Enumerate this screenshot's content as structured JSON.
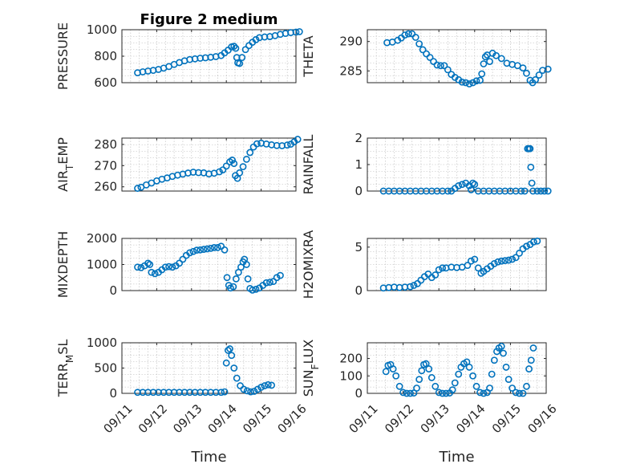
{
  "figure_title": "Figure 2 medium",
  "x_axis_label": "Time",
  "marker_color": "#0072BD",
  "x_tick_labels": [
    "09/11",
    "09/12",
    "09/13",
    "09/14",
    "09/15",
    "09/16"
  ],
  "chart_data": [
    {
      "type": "scatter",
      "ylabel": "PRESSURE",
      "ylim": [
        600,
        1000
      ],
      "yticks": [
        600,
        800,
        1000
      ],
      "xlim": [
        0,
        5
      ],
      "grid": true,
      "points": [
        [
          0.45,
          675
        ],
        [
          0.6,
          682
        ],
        [
          0.75,
          688
        ],
        [
          0.9,
          693
        ],
        [
          1.05,
          700
        ],
        [
          1.2,
          710
        ],
        [
          1.35,
          722
        ],
        [
          1.5,
          738
        ],
        [
          1.65,
          752
        ],
        [
          1.8,
          765
        ],
        [
          1.95,
          775
        ],
        [
          2.1,
          780
        ],
        [
          2.25,
          785
        ],
        [
          2.4,
          788
        ],
        [
          2.55,
          792
        ],
        [
          2.7,
          797
        ],
        [
          2.85,
          805
        ],
        [
          2.95,
          825
        ],
        [
          3.05,
          845
        ],
        [
          3.15,
          870
        ],
        [
          3.22,
          875
        ],
        [
          3.27,
          860
        ],
        [
          3.3,
          790
        ],
        [
          3.33,
          750
        ],
        [
          3.38,
          745
        ],
        [
          3.45,
          790
        ],
        [
          3.55,
          850
        ],
        [
          3.65,
          880
        ],
        [
          3.75,
          905
        ],
        [
          3.85,
          925
        ],
        [
          3.95,
          940
        ],
        [
          4.1,
          945
        ],
        [
          4.25,
          948
        ],
        [
          4.4,
          955
        ],
        [
          4.55,
          965
        ],
        [
          4.7,
          972
        ],
        [
          4.85,
          978
        ],
        [
          5.0,
          982
        ],
        [
          5.1,
          985
        ]
      ]
    },
    {
      "type": "scatter",
      "ylabel": "THETA",
      "ylim": [
        283,
        292
      ],
      "yticks": [
        285,
        290
      ],
      "xlim": [
        0,
        5
      ],
      "grid": true,
      "points": [
        [
          0.55,
          289.8
        ],
        [
          0.7,
          289.9
        ],
        [
          0.85,
          290.2
        ],
        [
          0.95,
          290.6
        ],
        [
          1.05,
          291.1
        ],
        [
          1.15,
          291.3
        ],
        [
          1.25,
          291.3
        ],
        [
          1.35,
          290.7
        ],
        [
          1.45,
          289.6
        ],
        [
          1.55,
          288.6
        ],
        [
          1.65,
          287.9
        ],
        [
          1.75,
          287.3
        ],
        [
          1.85,
          286.6
        ],
        [
          1.95,
          286.0
        ],
        [
          2.05,
          285.9
        ],
        [
          2.15,
          285.9
        ],
        [
          2.25,
          285.2
        ],
        [
          2.35,
          284.4
        ],
        [
          2.45,
          283.9
        ],
        [
          2.55,
          283.5
        ],
        [
          2.65,
          283.1
        ],
        [
          2.75,
          283.0
        ],
        [
          2.85,
          282.8
        ],
        [
          2.95,
          283.0
        ],
        [
          3.05,
          283.3
        ],
        [
          3.15,
          283.4
        ],
        [
          3.2,
          284.5
        ],
        [
          3.25,
          286.2
        ],
        [
          3.3,
          287.4
        ],
        [
          3.35,
          287.7
        ],
        [
          3.42,
          286.6
        ],
        [
          3.5,
          288.0
        ],
        [
          3.6,
          287.6
        ],
        [
          3.75,
          287.1
        ],
        [
          3.9,
          286.3
        ],
        [
          4.05,
          286.1
        ],
        [
          4.2,
          285.9
        ],
        [
          4.35,
          285.5
        ],
        [
          4.45,
          284.6
        ],
        [
          4.55,
          283.4
        ],
        [
          4.62,
          283.0
        ],
        [
          4.7,
          283.5
        ],
        [
          4.8,
          284.3
        ],
        [
          4.9,
          285.1
        ],
        [
          5.05,
          285.3
        ]
      ]
    },
    {
      "type": "scatter",
      "ylabel": "AIR_TEMP",
      "ylim": [
        258,
        283
      ],
      "yticks": [
        260,
        270,
        280
      ],
      "xlim": [
        0,
        5
      ],
      "grid": true,
      "points": [
        [
          0.45,
          259.3
        ],
        [
          0.55,
          259.8
        ],
        [
          0.7,
          260.9
        ],
        [
          0.85,
          261.8
        ],
        [
          1.0,
          262.8
        ],
        [
          1.15,
          263.6
        ],
        [
          1.3,
          264.2
        ],
        [
          1.45,
          264.9
        ],
        [
          1.6,
          265.5
        ],
        [
          1.75,
          266.0
        ],
        [
          1.9,
          266.5
        ],
        [
          2.05,
          266.9
        ],
        [
          2.2,
          266.7
        ],
        [
          2.35,
          266.6
        ],
        [
          2.5,
          266.1
        ],
        [
          2.65,
          266.4
        ],
        [
          2.8,
          267.1
        ],
        [
          2.9,
          268.0
        ],
        [
          3.0,
          269.8
        ],
        [
          3.1,
          271.8
        ],
        [
          3.17,
          272.6
        ],
        [
          3.22,
          271.0
        ],
        [
          3.26,
          265.3
        ],
        [
          3.32,
          264.0
        ],
        [
          3.38,
          266.6
        ],
        [
          3.48,
          269.5
        ],
        [
          3.58,
          273.0
        ],
        [
          3.68,
          276.2
        ],
        [
          3.78,
          278.8
        ],
        [
          3.88,
          280.3
        ],
        [
          4.0,
          280.6
        ],
        [
          4.15,
          280.2
        ],
        [
          4.3,
          279.8
        ],
        [
          4.45,
          279.5
        ],
        [
          4.6,
          279.4
        ],
        [
          4.75,
          279.7
        ],
        [
          4.85,
          280.1
        ],
        [
          4.95,
          281.2
        ],
        [
          5.05,
          282.4
        ]
      ]
    },
    {
      "type": "scatter",
      "ylabel": "RAINFALL",
      "ylim": [
        0,
        2
      ],
      "yticks": [
        0,
        1,
        2
      ],
      "xlim": [
        0,
        5
      ],
      "grid": true,
      "points": [
        [
          0.45,
          0
        ],
        [
          0.6,
          0
        ],
        [
          0.75,
          0
        ],
        [
          0.9,
          0
        ],
        [
          1.05,
          0
        ],
        [
          1.2,
          0
        ],
        [
          1.35,
          0
        ],
        [
          1.5,
          0
        ],
        [
          1.65,
          0
        ],
        [
          1.8,
          0
        ],
        [
          1.95,
          0
        ],
        [
          2.1,
          0
        ],
        [
          2.25,
          0
        ],
        [
          2.35,
          0
        ],
        [
          2.45,
          0.1
        ],
        [
          2.55,
          0.2
        ],
        [
          2.65,
          0.25
        ],
        [
          2.75,
          0.3
        ],
        [
          2.85,
          0.2
        ],
        [
          2.9,
          0.05
        ],
        [
          2.95,
          0.3
        ],
        [
          3.0,
          0.25
        ],
        [
          3.1,
          0
        ],
        [
          3.25,
          0
        ],
        [
          3.4,
          0
        ],
        [
          3.55,
          0
        ],
        [
          3.7,
          0
        ],
        [
          3.85,
          0
        ],
        [
          4.0,
          0
        ],
        [
          4.15,
          0
        ],
        [
          4.3,
          0
        ],
        [
          4.4,
          0
        ],
        [
          4.48,
          1.6
        ],
        [
          4.52,
          1.6
        ],
        [
          4.55,
          1.6
        ],
        [
          4.57,
          0.9
        ],
        [
          4.6,
          0.3
        ],
        [
          4.63,
          0
        ],
        [
          4.75,
          0
        ],
        [
          4.85,
          0
        ],
        [
          4.95,
          0
        ],
        [
          5.05,
          0
        ]
      ]
    },
    {
      "type": "scatter",
      "ylabel": "MIXDEPTH",
      "ylim": [
        0,
        2000
      ],
      "yticks": [
        0,
        1000,
        2000
      ],
      "xlim": [
        0,
        5
      ],
      "grid": true,
      "points": [
        [
          0.45,
          900
        ],
        [
          0.55,
          880
        ],
        [
          0.65,
          950
        ],
        [
          0.75,
          1050
        ],
        [
          0.8,
          1000
        ],
        [
          0.85,
          700
        ],
        [
          0.95,
          650
        ],
        [
          1.05,
          700
        ],
        [
          1.15,
          800
        ],
        [
          1.25,
          900
        ],
        [
          1.35,
          920
        ],
        [
          1.45,
          900
        ],
        [
          1.55,
          950
        ],
        [
          1.65,
          1050
        ],
        [
          1.75,
          1200
        ],
        [
          1.85,
          1350
        ],
        [
          1.95,
          1450
        ],
        [
          2.05,
          1500
        ],
        [
          2.15,
          1550
        ],
        [
          2.25,
          1560
        ],
        [
          2.35,
          1580
        ],
        [
          2.45,
          1600
        ],
        [
          2.55,
          1620
        ],
        [
          2.65,
          1650
        ],
        [
          2.75,
          1650
        ],
        [
          2.85,
          1700
        ],
        [
          2.95,
          1560
        ],
        [
          3.02,
          500
        ],
        [
          3.07,
          200
        ],
        [
          3.12,
          100
        ],
        [
          3.2,
          150
        ],
        [
          3.28,
          450
        ],
        [
          3.35,
          700
        ],
        [
          3.42,
          900
        ],
        [
          3.48,
          1100
        ],
        [
          3.52,
          1200
        ],
        [
          3.58,
          1000
        ],
        [
          3.62,
          450
        ],
        [
          3.68,
          80
        ],
        [
          3.75,
          20
        ],
        [
          3.85,
          50
        ],
        [
          3.95,
          100
        ],
        [
          4.05,
          200
        ],
        [
          4.15,
          300
        ],
        [
          4.25,
          320
        ],
        [
          4.35,
          350
        ],
        [
          4.45,
          500
        ],
        [
          4.55,
          580
        ]
      ]
    },
    {
      "type": "scatter",
      "ylabel": "H2OMIXRA",
      "ylim": [
        0,
        6
      ],
      "yticks": [
        0,
        5
      ],
      "xlim": [
        0,
        5
      ],
      "grid": true,
      "points": [
        [
          0.45,
          0.3
        ],
        [
          0.6,
          0.35
        ],
        [
          0.75,
          0.4
        ],
        [
          0.9,
          0.35
        ],
        [
          1.05,
          0.4
        ],
        [
          1.2,
          0.45
        ],
        [
          1.3,
          0.6
        ],
        [
          1.4,
          0.8
        ],
        [
          1.5,
          1.2
        ],
        [
          1.6,
          1.6
        ],
        [
          1.7,
          1.9
        ],
        [
          1.8,
          1.5
        ],
        [
          1.9,
          1.8
        ],
        [
          2.0,
          2.4
        ],
        [
          2.1,
          2.6
        ],
        [
          2.2,
          2.6
        ],
        [
          2.35,
          2.7
        ],
        [
          2.5,
          2.65
        ],
        [
          2.65,
          2.7
        ],
        [
          2.8,
          2.9
        ],
        [
          2.9,
          3.4
        ],
        [
          3.0,
          3.6
        ],
        [
          3.1,
          2.6
        ],
        [
          3.18,
          2.0
        ],
        [
          3.25,
          2.2
        ],
        [
          3.35,
          2.5
        ],
        [
          3.45,
          2.8
        ],
        [
          3.55,
          3.1
        ],
        [
          3.65,
          3.3
        ],
        [
          3.75,
          3.4
        ],
        [
          3.85,
          3.45
        ],
        [
          3.95,
          3.5
        ],
        [
          4.05,
          3.6
        ],
        [
          4.15,
          3.8
        ],
        [
          4.25,
          4.3
        ],
        [
          4.35,
          4.8
        ],
        [
          4.45,
          5.1
        ],
        [
          4.55,
          5.3
        ],
        [
          4.65,
          5.6
        ],
        [
          4.75,
          5.7
        ]
      ]
    },
    {
      "type": "scatter",
      "ylabel": "TERR_MSL",
      "ylim": [
        0,
        1000
      ],
      "yticks": [
        0,
        500,
        1000
      ],
      "xlim": [
        0,
        5
      ],
      "grid": true,
      "points": [
        [
          0.45,
          20
        ],
        [
          0.6,
          20
        ],
        [
          0.75,
          20
        ],
        [
          0.9,
          20
        ],
        [
          1.05,
          20
        ],
        [
          1.2,
          20
        ],
        [
          1.35,
          20
        ],
        [
          1.5,
          20
        ],
        [
          1.65,
          20
        ],
        [
          1.8,
          20
        ],
        [
          1.95,
          20
        ],
        [
          2.1,
          20
        ],
        [
          2.25,
          20
        ],
        [
          2.4,
          20
        ],
        [
          2.55,
          20
        ],
        [
          2.7,
          20
        ],
        [
          2.85,
          20
        ],
        [
          2.95,
          30
        ],
        [
          3.0,
          600
        ],
        [
          3.05,
          850
        ],
        [
          3.1,
          880
        ],
        [
          3.15,
          750
        ],
        [
          3.22,
          500
        ],
        [
          3.3,
          300
        ],
        [
          3.4,
          150
        ],
        [
          3.5,
          80
        ],
        [
          3.6,
          50
        ],
        [
          3.7,
          30
        ],
        [
          3.8,
          40
        ],
        [
          3.9,
          80
        ],
        [
          4.0,
          120
        ],
        [
          4.1,
          150
        ],
        [
          4.2,
          170
        ],
        [
          4.3,
          160
        ]
      ]
    },
    {
      "type": "scatter",
      "ylabel": "SUN_FLUX",
      "ylim": [
        0,
        290
      ],
      "yticks": [
        0,
        100,
        200
      ],
      "xlim": [
        0,
        5
      ],
      "grid": true,
      "points": [
        [
          0.52,
          125
        ],
        [
          0.58,
          160
        ],
        [
          0.65,
          165
        ],
        [
          0.72,
          140
        ],
        [
          0.8,
          100
        ],
        [
          0.9,
          40
        ],
        [
          1.0,
          5
        ],
        [
          1.1,
          0
        ],
        [
          1.2,
          0
        ],
        [
          1.3,
          2
        ],
        [
          1.38,
          30
        ],
        [
          1.45,
          80
        ],
        [
          1.52,
          130
        ],
        [
          1.58,
          165
        ],
        [
          1.64,
          170
        ],
        [
          1.72,
          140
        ],
        [
          1.8,
          90
        ],
        [
          1.9,
          40
        ],
        [
          2.0,
          5
        ],
        [
          2.1,
          0
        ],
        [
          2.2,
          0
        ],
        [
          2.3,
          2
        ],
        [
          2.38,
          20
        ],
        [
          2.45,
          60
        ],
        [
          2.55,
          110
        ],
        [
          2.62,
          150
        ],
        [
          2.7,
          170
        ],
        [
          2.78,
          180
        ],
        [
          2.85,
          150
        ],
        [
          2.95,
          100
        ],
        [
          3.05,
          40
        ],
        [
          3.15,
          5
        ],
        [
          3.25,
          0
        ],
        [
          3.35,
          5
        ],
        [
          3.42,
          30
        ],
        [
          3.48,
          110
        ],
        [
          3.55,
          190
        ],
        [
          3.62,
          240
        ],
        [
          3.68,
          260
        ],
        [
          3.75,
          270
        ],
        [
          3.8,
          230
        ],
        [
          3.88,
          150
        ],
        [
          3.95,
          80
        ],
        [
          4.05,
          30
        ],
        [
          4.15,
          5
        ],
        [
          4.25,
          0
        ],
        [
          4.35,
          0
        ],
        [
          4.45,
          40
        ],
        [
          4.52,
          140
        ],
        [
          4.58,
          190
        ],
        [
          4.64,
          260
        ]
      ]
    }
  ]
}
